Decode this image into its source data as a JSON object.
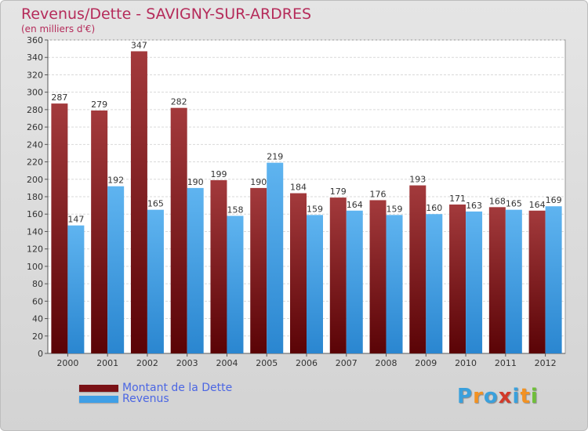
{
  "title": "Revenus/Dette - SAVIGNY-SUR-ARDRES",
  "subtitle": "(en milliers d'€)",
  "logo": {
    "letters": [
      "P",
      "r",
      "o",
      "x",
      "i",
      "t",
      "i"
    ],
    "colors": [
      "#3aa0dc",
      "#f29223",
      "#3aa0dc",
      "#d23a2a",
      "#3aa0dc",
      "#f29223",
      "#6fbf3a"
    ]
  },
  "legend": {
    "placement": "bottom-left",
    "items": [
      {
        "label": "Montant de la Dette",
        "color": "#7a1116"
      },
      {
        "label": "Revenus",
        "color": "#3f9fe6"
      }
    ]
  },
  "chart_data": {
    "type": "bar",
    "categories": [
      "2000",
      "2001",
      "2002",
      "2003",
      "2004",
      "2005",
      "2006",
      "2007",
      "2008",
      "2009",
      "2010",
      "2011",
      "2012"
    ],
    "series": [
      {
        "name": "Montant de la Dette",
        "color": "#7a1116",
        "values": [
          287,
          279,
          347,
          282,
          199,
          190,
          184,
          179,
          176,
          193,
          171,
          168,
          164
        ]
      },
      {
        "name": "Revenus",
        "color": "#3f9fe6",
        "values": [
          147,
          192,
          165,
          190,
          158,
          219,
          159,
          164,
          159,
          160,
          163,
          165,
          169
        ]
      }
    ],
    "ylim": [
      0,
      360
    ],
    "ytick_step": 20,
    "grid": true
  }
}
